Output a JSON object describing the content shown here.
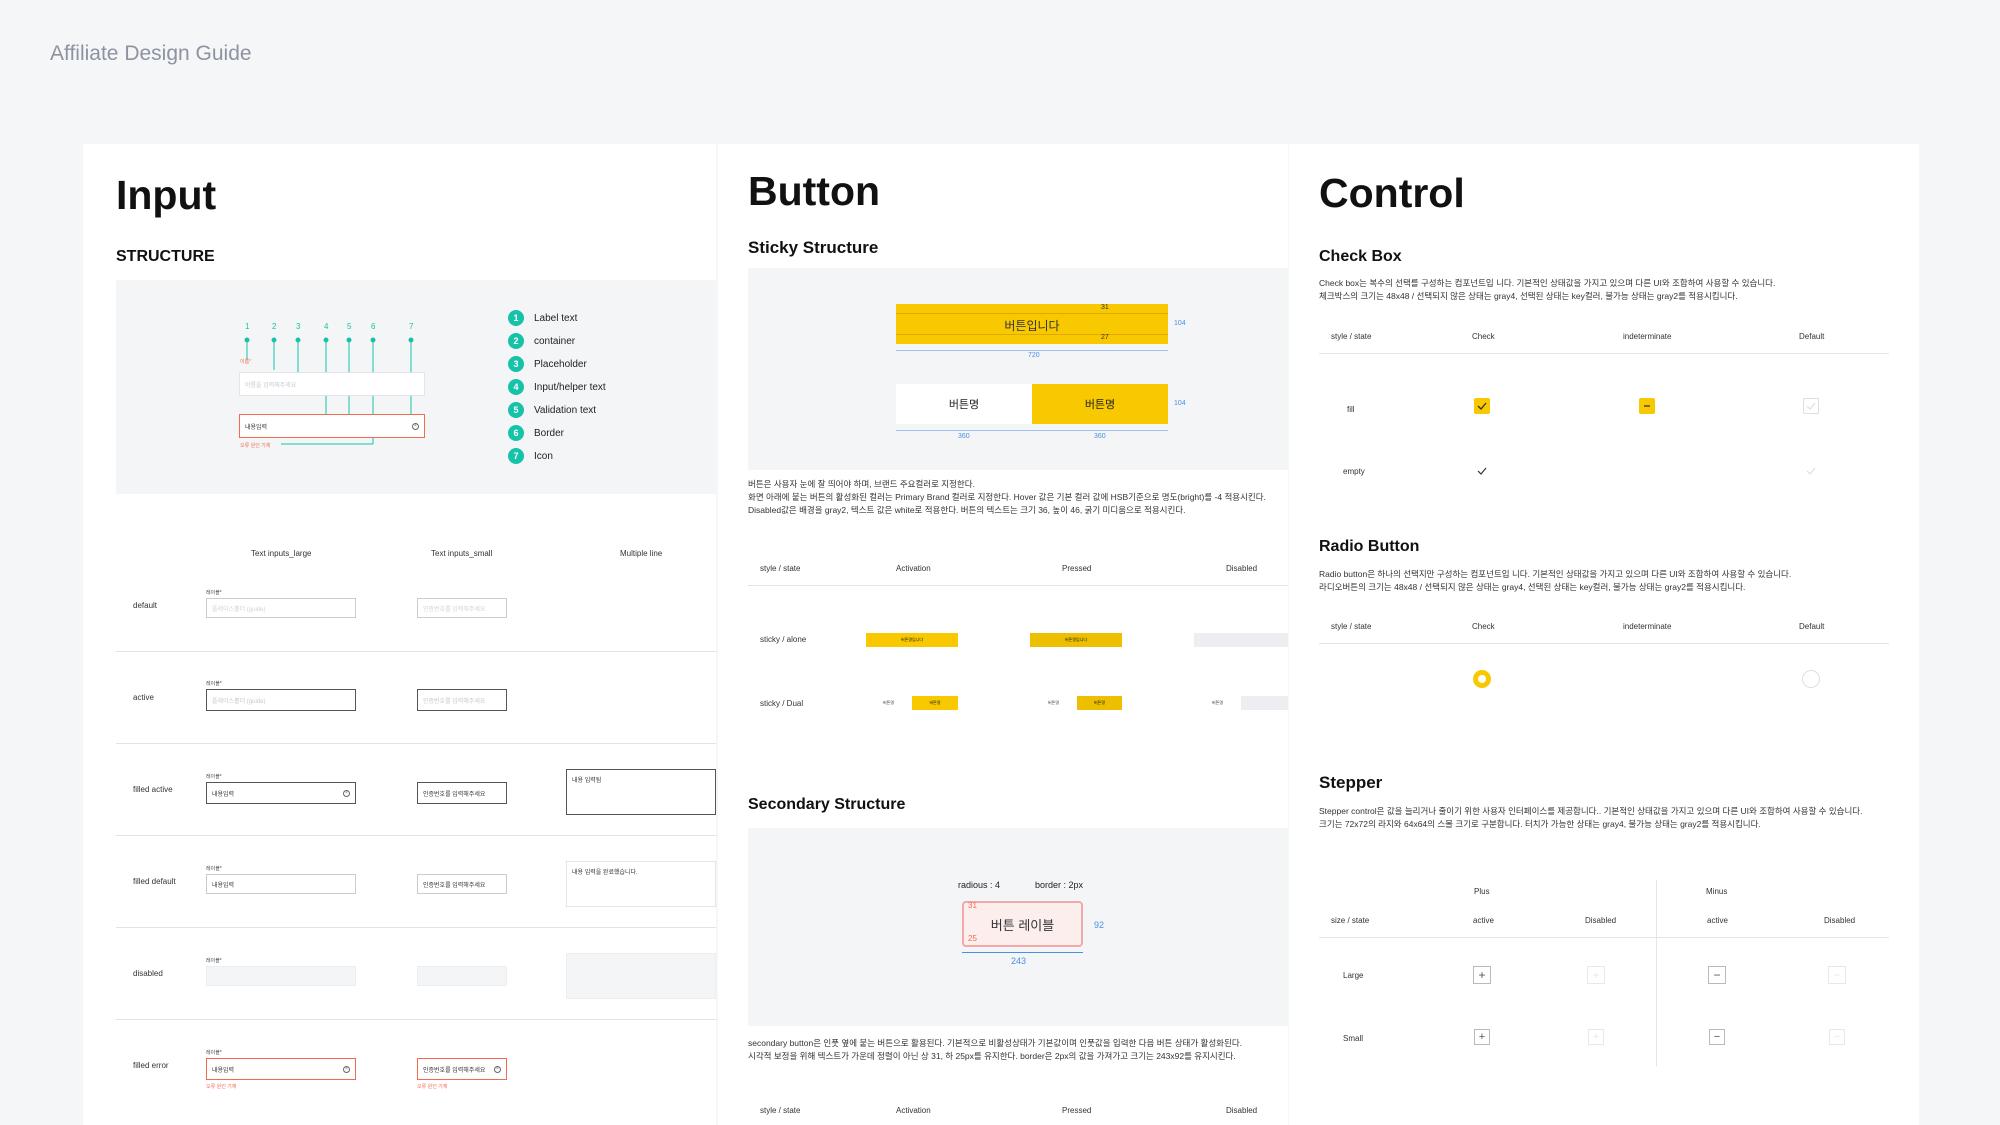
{
  "page_title": "Affiliate Design Guide",
  "input": {
    "title": "Input",
    "structure_heading": "STRUCTURE",
    "numbers": [
      "1",
      "2",
      "3",
      "4",
      "5",
      "6",
      "7"
    ],
    "diagram_label": "이름*",
    "diagram_placeholder": "이름을 입력해주세요",
    "diagram_value": "내용입력",
    "diagram_error": "오류 원인 기재",
    "legend": [
      "Label text",
      "container",
      "Placeholder",
      "Input/helper text",
      "Validation text",
      "Border",
      "Icon"
    ],
    "columns": [
      "Text inputs_large",
      "Text inputs_small",
      "Multiple line"
    ],
    "rows": [
      "default",
      "active",
      "filled active",
      "filled default",
      "disabled",
      "filled error"
    ],
    "field_label": "레이블*",
    "placeholder_large": "플레이스홀더 (guide)",
    "placeholder_small": "인증번호를 입력해주세요",
    "value_large": "내용입력",
    "value_small": "인증번호를 입력해주세요",
    "multiline_active": "내용 입력됨",
    "multiline_default": "내용 입력을 완료했습니다.",
    "error_msg": "오류 원인 기재"
  },
  "button": {
    "title": "Button",
    "sticky_heading": "Sticky Structure",
    "sticky_label": "버튼입니다",
    "dual_left": "버튼명",
    "dual_right": "버튼명",
    "dims": [
      "31",
      "27",
      "104",
      "720",
      "104",
      "360",
      "360"
    ],
    "sticky_desc": [
      "버튼은 사용자 눈에 잘 띄어야 하며, 브랜드 주요컬러로 지정한다.",
      "화면 아래에 붙는 버튼의 활성화된 컬러는 Primary Brand 컬러로 지정한다. Hover 값은 기본 컬러 값에 HSB기준으로 명도(bright)를 -4 적용시킨다.",
      "Disabled값은 배경을 gray2, 텍스트 값은 white로 적용한다. 버튼의 텍스트는 크기 36, 높이 46, 굵기 미디움으로 적용시킨다."
    ],
    "state_cols": [
      "style / state",
      "Activation",
      "Pressed",
      "Disabled"
    ],
    "state_rows": [
      "sticky / alone",
      "sticky / Dual"
    ],
    "mini_label": "버튼명입니다",
    "mini_left": "버튼명",
    "mini_right": "버튼명",
    "secondary_heading": "Secondary Structure",
    "radius_note": "radious : 4",
    "border_note": "border : 2px",
    "sec_label": "버튼 레이블",
    "sec_dims": [
      "31",
      "25",
      "92",
      "243"
    ],
    "sec_desc": [
      "secondary button은 인풋 옆에 붙는 버튼으로 활용된다. 기본적으로 비활성상태가 기본값이며 인풋값을 입력한 다음 버튼 상태가 활성화된다.",
      "시각적 보정을 위해 텍스트가 가운데 정렬이 아닌 상 31, 하 25px를 유지한다. border은 2px의 값을 가져가고 크기는 243x92를 유지시킨다."
    ],
    "bottom_cols": [
      "style / state",
      "Activation",
      "Pressed",
      "Disabled"
    ]
  },
  "control": {
    "title": "Control",
    "checkbox_heading": "Check Box",
    "checkbox_desc": [
      "Check box는 복수의 선택를 구성하는 컴포넌트입 니다. 기본적인 상태값을 가지고 있으며 다른 UI와 조합하여 사용할 수 있습니다.",
      "체크박스의 크기는 48x48 / 선택되지 않은 상태는 gray4, 선택된 상태는 key컬러, 불가능 상태는 gray2를 적용시킵니다."
    ],
    "checkbox_cols": [
      "style / state",
      "Check",
      "indeterminate",
      "Default"
    ],
    "checkbox_rows": [
      "fill",
      "empty"
    ],
    "radio_heading": "Radio Button",
    "radio_desc": [
      "Radio button은 하나의 선택지만 구성하는 컴포넌트입 니다. 기본적인 상태값을 가지고 있으며 다른 UI와 조합하여 사용할 수 있습니다.",
      "라디오버튼의 크기는 48x48 / 선택되지 않은 상태는 gray4, 선택된 상태는 key컬러, 불가능 상태는 gray2를 적용시킵니다."
    ],
    "radio_cols": [
      "style / state",
      "Check",
      "indeterminate",
      "Default"
    ],
    "stepper_heading": "Stepper",
    "stepper_desc": [
      "Stepper control은 값을 늘리거나 줄이기 위한 사용자 인터페이스를 제공합니다.. 기본적인 상태값을 가지고 있으며 다른 UI와 조합하여 사용할 수 있습니다.",
      "크기는 72x72의 라지와 64x64의 스몰 크기로 구분합니다. 터치가 가능한 상태는 gray4, 불가능 상태는 gray2를 적용시킵니다."
    ],
    "stepper_groups": [
      "Plus",
      "Minus"
    ],
    "stepper_cols": [
      "size / state",
      "active",
      "Disabled",
      "active",
      "Disabled"
    ],
    "stepper_rows": [
      "Large",
      "Small"
    ]
  },
  "colors": {
    "brand": "#f8c900",
    "teal": "#16c3a8",
    "error": "#f26b4e",
    "dim": "#4a90e2"
  }
}
